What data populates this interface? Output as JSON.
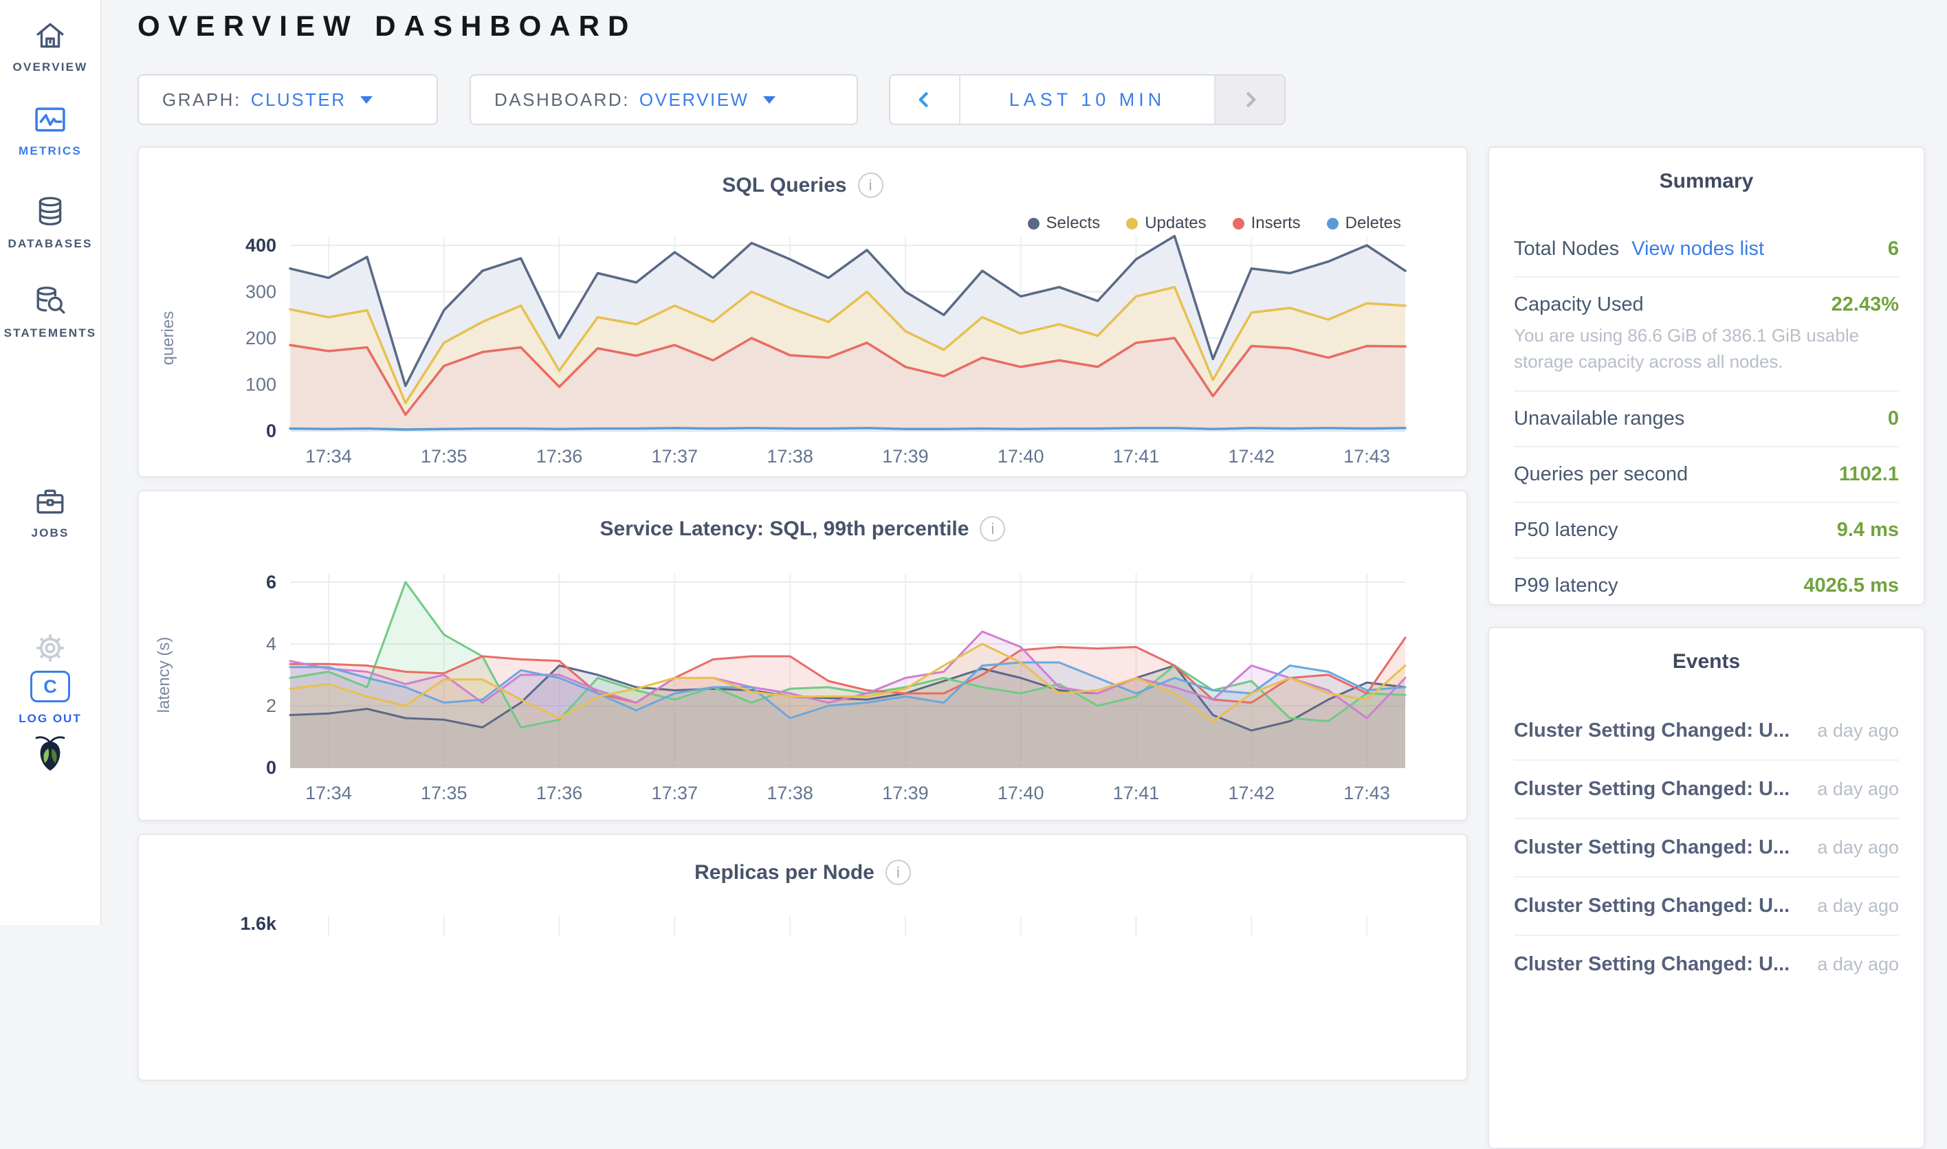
{
  "app": {
    "title": "OVERVIEW DASHBOARD"
  },
  "colors": {
    "accent_blue": "#3a7de8",
    "active_nav": "#3b7dec",
    "value_green": "#71a33e",
    "slate_text": "#475872",
    "muted_gray": "#b7bec9",
    "page_bg": "#f4f5f7"
  },
  "sidebar": {
    "items": [
      {
        "id": "overview",
        "label": "OVERVIEW",
        "icon": "home-icon",
        "active": false
      },
      {
        "id": "metrics",
        "label": "METRICS",
        "icon": "metrics-icon",
        "active": true
      },
      {
        "id": "databases",
        "label": "DATABASES",
        "icon": "database-icon",
        "active": false
      },
      {
        "id": "statements",
        "label": "STATEMENTS",
        "icon": "statements-icon",
        "active": false
      },
      {
        "id": "jobs",
        "label": "JOBS",
        "icon": "briefcase-icon",
        "active": false
      }
    ],
    "logout": {
      "label": "LOG OUT",
      "badge_letter": "C"
    }
  },
  "controls": {
    "graph": {
      "label": "GRAPH:",
      "value": "CLUSTER"
    },
    "dashboard": {
      "label": "DASHBOARD:",
      "value": "OVERVIEW"
    },
    "time_range": {
      "label": "LAST 10 MIN"
    }
  },
  "summary": {
    "heading": "Summary",
    "rows": [
      {
        "label": "Total Nodes",
        "link": "View nodes list",
        "value": "6"
      },
      {
        "label": "Capacity Used",
        "value": "22.43%",
        "subtext": "You are using 86.6 GiB of 386.1 GiB usable storage capacity across all nodes."
      },
      {
        "label": "Unavailable ranges",
        "value": "0"
      },
      {
        "label": "Queries per second",
        "value": "1102.1"
      },
      {
        "label": "P50 latency",
        "value": "9.4 ms"
      },
      {
        "label": "P99 latency",
        "value": "4026.5 ms"
      }
    ]
  },
  "events": {
    "heading": "Events",
    "items": [
      {
        "text": "Cluster Setting Changed: U...",
        "time": "a day ago"
      },
      {
        "text": "Cluster Setting Changed: U...",
        "time": "a day ago"
      },
      {
        "text": "Cluster Setting Changed: U...",
        "time": "a day ago"
      },
      {
        "text": "Cluster Setting Changed: U...",
        "time": "a day ago"
      },
      {
        "text": "Cluster Setting Changed: U...",
        "time": "a day ago"
      }
    ]
  },
  "chart_data": [
    {
      "id": "sql-queries",
      "type": "area",
      "title": "SQL Queries",
      "ylabel": "queries",
      "ylim": [
        0,
        400
      ],
      "y_ticks": [
        0,
        100,
        200,
        300,
        400
      ],
      "grid": true,
      "legend_position": "top-right",
      "x_start": "17:33:40",
      "x_end": "17:43:20",
      "x_step_seconds": 20,
      "x_ticks": [
        {
          "label": "17:34",
          "index": 1
        },
        {
          "label": "17:35",
          "index": 4
        },
        {
          "label": "17:36",
          "index": 7
        },
        {
          "label": "17:37",
          "index": 10
        },
        {
          "label": "17:38",
          "index": 13
        },
        {
          "label": "17:39",
          "index": 16
        },
        {
          "label": "17:40",
          "index": 19
        },
        {
          "label": "17:41",
          "index": 22
        },
        {
          "label": "17:42",
          "index": 25
        },
        {
          "label": "17:43",
          "index": 28
        }
      ],
      "series": [
        {
          "name": "Selects",
          "color": "#5a6a85",
          "fill": "#eaedf4",
          "values": [
            350,
            330,
            375,
            97,
            260,
            345,
            372,
            200,
            340,
            320,
            385,
            330,
            405,
            370,
            330,
            390,
            300,
            250,
            345,
            290,
            310,
            280,
            370,
            420,
            155,
            350,
            340,
            365,
            400,
            345
          ]
        },
        {
          "name": "Updates",
          "color": "#e8c04f",
          "fill": "#f4ecd8",
          "values": [
            262,
            245,
            260,
            60,
            190,
            235,
            270,
            130,
            245,
            230,
            270,
            235,
            300,
            265,
            235,
            300,
            215,
            175,
            245,
            210,
            230,
            205,
            290,
            310,
            110,
            255,
            265,
            240,
            275,
            270
          ]
        },
        {
          "name": "Inserts",
          "color": "#e86c65",
          "fill": "#f2e1da",
          "values": [
            185,
            172,
            180,
            35,
            140,
            170,
            180,
            95,
            178,
            162,
            185,
            152,
            200,
            163,
            158,
            190,
            138,
            118,
            158,
            138,
            152,
            138,
            190,
            200,
            75,
            183,
            178,
            158,
            183,
            182
          ]
        },
        {
          "name": "Deletes",
          "color": "#5b9bd5",
          "fill": "#e3edf7",
          "values": [
            5,
            4,
            5,
            3,
            4,
            5,
            5,
            4,
            5,
            5,
            6,
            5,
            6,
            5,
            5,
            6,
            4,
            4,
            5,
            4,
            5,
            5,
            6,
            6,
            4,
            6,
            5,
            6,
            5,
            6
          ]
        }
      ]
    },
    {
      "id": "service-latency",
      "type": "area",
      "title": "Service Latency: SQL, 99th percentile",
      "ylabel": "latency (s)",
      "ylim": [
        0,
        6
      ],
      "y_ticks": [
        0,
        2,
        4,
        6
      ],
      "grid": true,
      "x_start": "17:33:40",
      "x_end": "17:43:20",
      "x_step_seconds": 20,
      "x_ticks": [
        {
          "label": "17:34",
          "index": 1
        },
        {
          "label": "17:35",
          "index": 4
        },
        {
          "label": "17:36",
          "index": 7
        },
        {
          "label": "17:37",
          "index": 10
        },
        {
          "label": "17:38",
          "index": 13
        },
        {
          "label": "17:39",
          "index": 16
        },
        {
          "label": "17:40",
          "index": 19
        },
        {
          "label": "17:41",
          "index": 22
        },
        {
          "label": "17:42",
          "index": 25
        },
        {
          "label": "17:43",
          "index": 28
        }
      ],
      "series": [
        {
          "name": "series-1",
          "color": "#5a6a85",
          "fill": "#5a6a85",
          "fill_opacity": 0.16,
          "values": [
            1.7,
            1.75,
            1.9,
            1.6,
            1.55,
            1.3,
            2.1,
            3.3,
            3.0,
            2.6,
            2.5,
            2.55,
            2.5,
            2.3,
            2.25,
            2.2,
            2.4,
            2.8,
            3.2,
            2.9,
            2.5,
            2.4,
            2.9,
            3.3,
            1.7,
            1.2,
            1.5,
            2.2,
            2.75,
            2.6
          ]
        },
        {
          "name": "series-2",
          "color": "#6ecb85",
          "fill": "#6ecb85",
          "fill_opacity": 0.16,
          "values": [
            2.9,
            3.1,
            2.6,
            6.0,
            4.3,
            3.6,
            1.3,
            1.55,
            2.9,
            2.5,
            2.2,
            2.6,
            2.1,
            2.55,
            2.6,
            2.4,
            2.6,
            2.9,
            2.6,
            2.4,
            2.7,
            2.0,
            2.3,
            3.3,
            2.5,
            2.8,
            1.6,
            1.5,
            2.4,
            2.35
          ]
        },
        {
          "name": "series-3",
          "color": "#e86c65",
          "fill": "#e86c65",
          "fill_opacity": 0.16,
          "values": [
            3.35,
            3.35,
            3.3,
            3.1,
            3.05,
            3.6,
            3.5,
            3.45,
            2.4,
            2.1,
            2.9,
            3.5,
            3.6,
            3.6,
            2.8,
            2.5,
            2.4,
            2.4,
            3.0,
            3.8,
            3.9,
            3.85,
            3.9,
            3.3,
            2.2,
            2.1,
            2.9,
            3.0,
            2.4,
            4.2
          ]
        },
        {
          "name": "series-4",
          "color": "#cf7fd1",
          "fill": "#cf7fd1",
          "fill_opacity": 0.16,
          "values": [
            3.45,
            3.2,
            3.1,
            2.7,
            3.0,
            2.1,
            3.0,
            3.0,
            2.5,
            2.1,
            2.9,
            2.9,
            2.6,
            2.4,
            2.1,
            2.4,
            2.9,
            3.1,
            4.4,
            3.9,
            2.6,
            2.4,
            2.9,
            2.6,
            2.2,
            3.3,
            2.9,
            2.5,
            1.6,
            2.9
          ]
        },
        {
          "name": "series-5",
          "color": "#6aa8dd",
          "fill": "#6aa8dd",
          "fill_opacity": 0.16,
          "values": [
            3.25,
            3.25,
            2.9,
            2.6,
            2.1,
            2.2,
            3.15,
            2.9,
            2.4,
            1.85,
            2.4,
            2.6,
            2.6,
            1.6,
            2.0,
            2.1,
            2.3,
            2.1,
            3.3,
            3.4,
            3.4,
            2.9,
            2.4,
            2.9,
            2.5,
            2.4,
            3.3,
            3.1,
            2.5,
            2.6
          ]
        },
        {
          "name": "series-6",
          "color": "#e8c04f",
          "fill": "#e8c04f",
          "fill_opacity": 0.16,
          "values": [
            2.55,
            2.7,
            2.3,
            2.0,
            2.85,
            2.85,
            2.2,
            1.6,
            2.3,
            2.55,
            2.9,
            2.9,
            2.45,
            2.3,
            2.3,
            2.3,
            2.55,
            3.3,
            4.0,
            3.4,
            2.4,
            2.5,
            2.9,
            2.4,
            1.5,
            2.4,
            2.9,
            2.4,
            2.2,
            3.3
          ]
        }
      ]
    },
    {
      "id": "replicas-per-node",
      "type": "area",
      "title": "Replicas per Node",
      "partial": true,
      "visible_y_top_label": "1.6k",
      "series": []
    }
  ]
}
